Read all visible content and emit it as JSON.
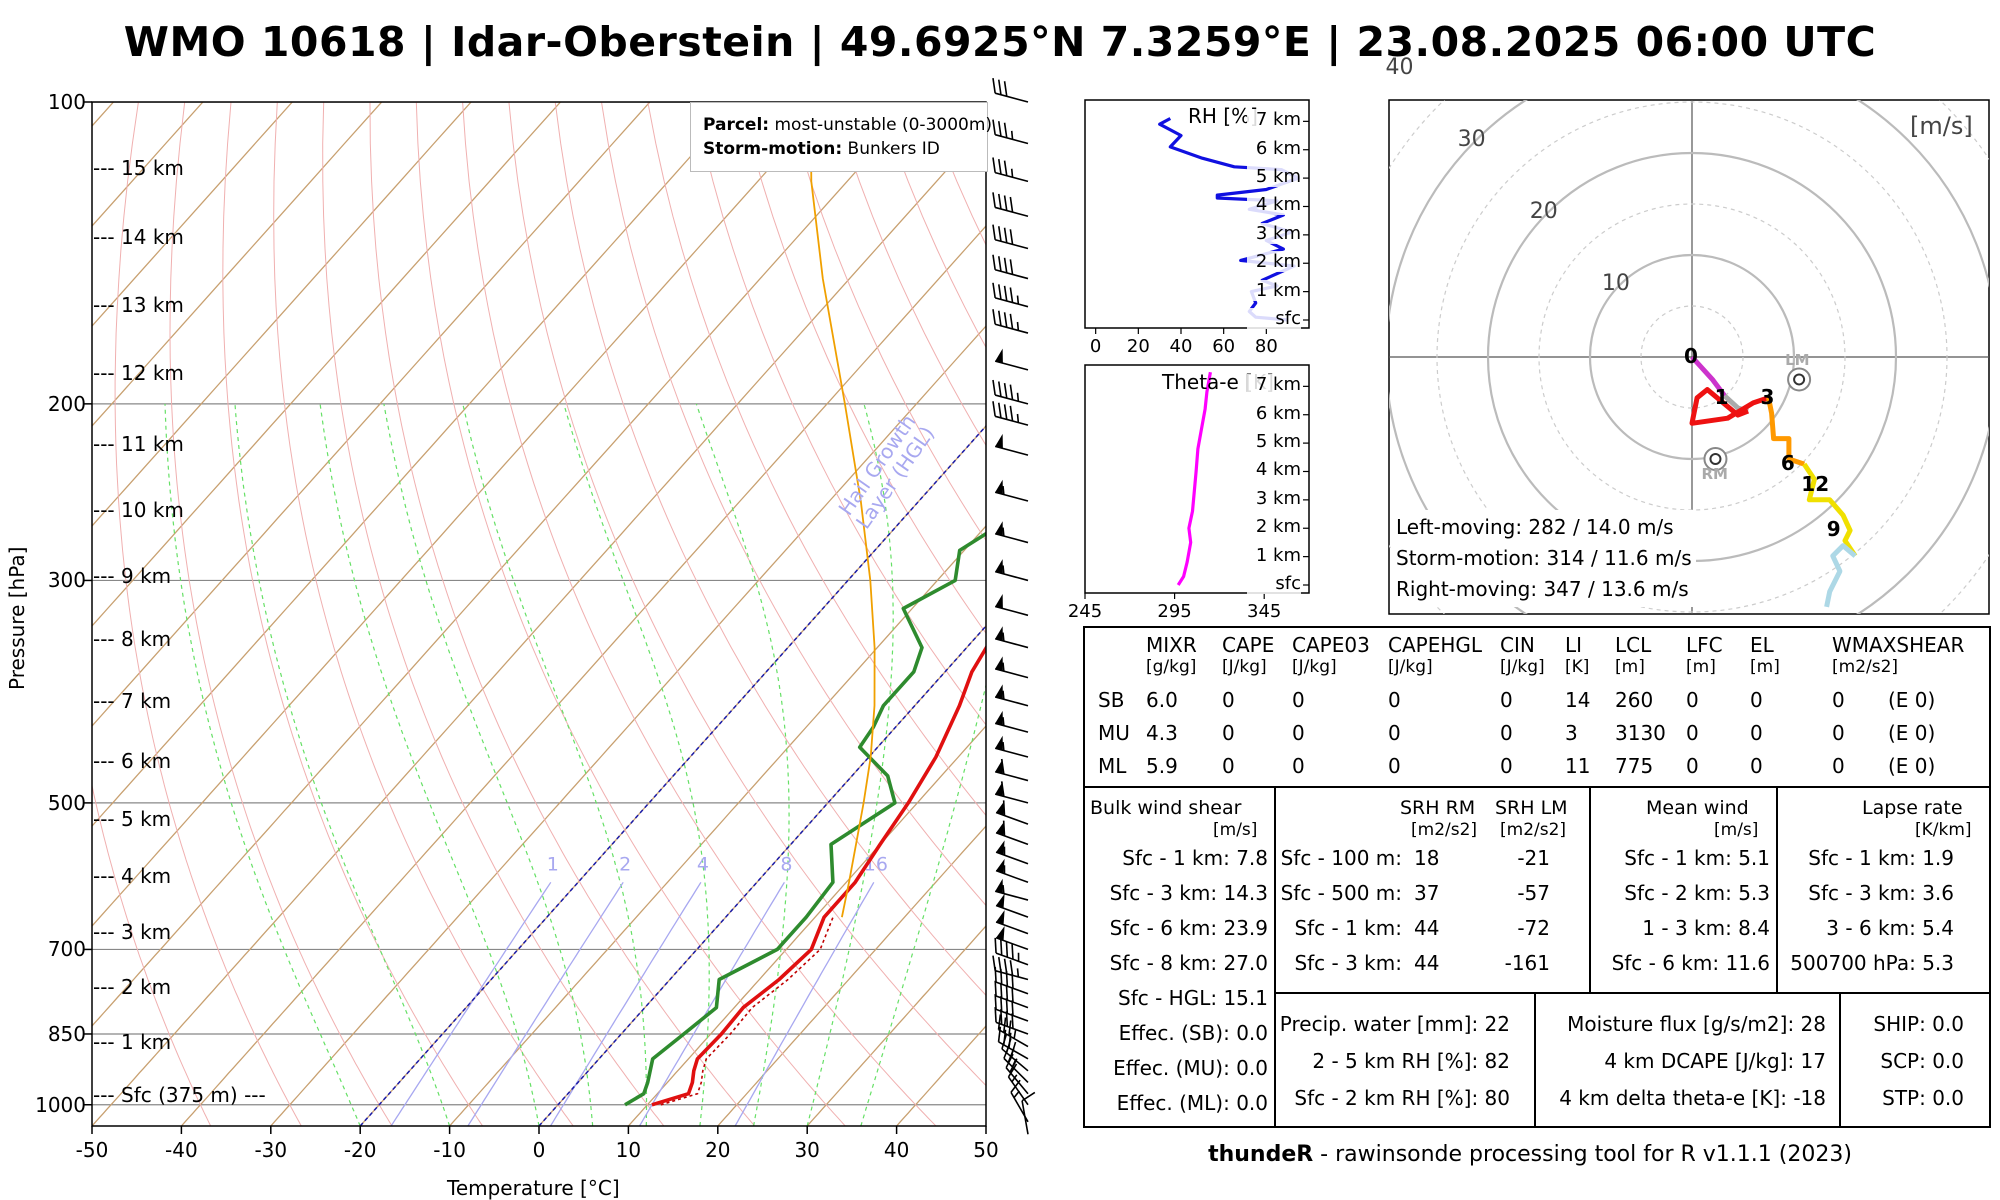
{
  "title": "WMO 10618 | Idar-Oberstein | 49.6925°N 7.3259°E | 23.08.2025 06:00 UTC",
  "skewt": {
    "ylabel": "Pressure [hPa]",
    "xlabel": "Temperature [°C]",
    "xticks": [
      "-50",
      "-40",
      "-30",
      "-20",
      "-10",
      "0",
      "10",
      "20",
      "30",
      "40",
      "50"
    ],
    "yticks": [
      "100",
      "200",
      "300",
      "500",
      "700",
      "850",
      "1000"
    ],
    "heights": [
      "--- 15 km",
      "--- 14 km",
      "--- 13 km",
      "--- 12 km",
      "--- 11 km",
      "--- 10 km",
      "--- 9 km",
      "--- 8 km",
      "--- 7 km",
      "--- 6 km",
      "--- 5 km",
      "--- 4 km",
      "--- 3 km",
      "--- 2 km",
      "--- 1 km",
      "--- Sfc (375 m) ---"
    ],
    "hail_label": "Hail Growth Layer (HGL)",
    "mixing_ratio_labels": [
      "1",
      "2",
      "4",
      "8",
      "16"
    ],
    "legend": {
      "parcel_label": "Parcel:",
      "parcel_value": "most-unstable (0-3000m)",
      "storm_label": "Storm-motion:",
      "storm_value": "Bunkers ID"
    }
  },
  "rh_panel": {
    "title": "RH [%]",
    "xticks": [
      "0",
      "20",
      "40",
      "60",
      "80"
    ],
    "levels": [
      "7 km",
      "6 km",
      "5 km",
      "4 km",
      "3 km",
      "2 km",
      "1 km",
      "sfc"
    ]
  },
  "thetae_panel": {
    "title": "Theta-e [K]",
    "xticks": [
      "245",
      "295",
      "345"
    ],
    "levels": [
      "7 km",
      "6 km",
      "5 km",
      "4 km",
      "3 km",
      "2 km",
      "1 km",
      "sfc"
    ]
  },
  "hodograph": {
    "unit": "[m/s]",
    "rings": [
      "10",
      "20",
      "30",
      "40"
    ],
    "height_labels": [
      "0",
      "1",
      "3",
      "6",
      "12",
      "9"
    ],
    "lm_label": "LM",
    "rm_label": "RM",
    "text": [
      "Left-moving: 282 / 14.0 m/s",
      "Storm-motion: 314 / 11.6 m/s",
      "Right-moving: 347 / 13.6 m/s"
    ]
  },
  "indices": {
    "headers": [
      "MIXR",
      "CAPE",
      "CAPE03",
      "CAPEHGL",
      "CIN",
      "LI",
      "LCL",
      "LFC",
      "EL",
      "WMAXSHEAR"
    ],
    "units": [
      "[g/kg]",
      "[J/kg]",
      "[J/kg]",
      "[J/kg]",
      "[J/kg]",
      "[K]",
      "[m]",
      "[m]",
      "[m]",
      "[m2/s2]"
    ],
    "rows": [
      {
        "name": "SB",
        "vals": [
          "6.0",
          "0",
          "0",
          "0",
          "0",
          "14",
          "260",
          "0",
          "0",
          "0",
          "(E 0)"
        ]
      },
      {
        "name": "MU",
        "vals": [
          "4.3",
          "0",
          "0",
          "0",
          "0",
          "3",
          "3130",
          "0",
          "0",
          "0",
          "(E 0)"
        ]
      },
      {
        "name": "ML",
        "vals": [
          "5.9",
          "0",
          "0",
          "0",
          "0",
          "11",
          "775",
          "0",
          "0",
          "0",
          "(E 0)"
        ]
      }
    ]
  },
  "shear": {
    "title": "Bulk wind shear",
    "unit": "[m/s]",
    "rows": [
      "Sfc - 1 km: 7.8",
      "Sfc - 3 km: 14.3",
      "Sfc - 6 km: 23.9",
      "Sfc - 8 km: 27.0",
      "Sfc - HGL: 15.1",
      "Effec. (SB): 0.0",
      "Effec. (MU): 0.0",
      "Effec. (ML): 0.0"
    ]
  },
  "srh": {
    "title_rm": "SRH RM",
    "title_lm": "SRH LM",
    "unit_rm": "[m2/s2]",
    "unit_lm": "[m2/s2]",
    "rows": [
      {
        "label": "Sfc - 100 m:",
        "rm": "18",
        "lm": "-21"
      },
      {
        "label": "Sfc - 500 m:",
        "rm": "37",
        "lm": "-57"
      },
      {
        "label": "Sfc - 1 km:",
        "rm": "44",
        "lm": "-72"
      },
      {
        "label": "Sfc - 3 km:",
        "rm": "44",
        "lm": "-161"
      }
    ]
  },
  "mean_wind": {
    "title": "Mean wind",
    "unit": "[m/s]",
    "rows": [
      "Sfc - 1 km: 5.1",
      "Sfc - 2 km: 5.3",
      "1 - 3 km: 8.4",
      "Sfc - 6 km: 11.6"
    ]
  },
  "lapse": {
    "title": "Lapse rate",
    "unit": "[K/km]",
    "rows": [
      "Sfc - 1 km: 1.9",
      "Sfc - 3 km: 3.6",
      "3 - 6 km: 5.4",
      "500700 hPa: 5.3"
    ]
  },
  "moisture": {
    "col1": [
      "Precip. water [mm]: 22",
      "2 - 5 km RH [%]: 82",
      "Sfc - 2 km RH [%]: 80"
    ],
    "col2": [
      "Moisture flux [g/s/m2]: 28",
      "4 km DCAPE [J/kg]: 17",
      "4 km delta theta-e [K]: -18"
    ],
    "col3": [
      "SHIP: 0.0",
      "SCP: 0.0",
      "STP: 0.0"
    ]
  },
  "footer": {
    "bold": "thundeR",
    "rest": " - rawinsonde processing tool for R v1.1.1 (2023)"
  },
  "chart_data": [
    {
      "type": "line",
      "name": "skew-t",
      "xlabel": "Temperature [°C]",
      "ylabel": "Pressure [hPa]",
      "xlim": [
        -50,
        50
      ],
      "ylim": [
        1050,
        100
      ],
      "yscale": "log",
      "series": [
        {
          "name": "",
          "color": "#e01010",
          "points": [
            [
              1000,
              10.5
            ],
            [
              975,
              13.5
            ],
            [
              950,
              12.8
            ],
            [
              925,
              11.8
            ],
            [
              900,
              11.0
            ],
            [
              850,
              11.2
            ],
            [
              800,
              11.0
            ],
            [
              750,
              12.2
            ],
            [
              700,
              12.8
            ],
            [
              650,
              11.0
            ],
            [
              600,
              11.0
            ],
            [
              550,
              10.0
            ],
            [
              500,
              9.0
            ],
            [
              450,
              7.5
            ],
            [
              400,
              5.0
            ],
            [
              370,
              3.0
            ],
            [
              350,
              2.2
            ],
            [
              320,
              0.5
            ],
            [
              300,
              -0.5
            ],
            [
              270,
              -2.0
            ],
            [
              250,
              -3.0
            ],
            [
              230,
              -4.5
            ],
            [
              220,
              -4.5
            ],
            [
              210,
              -4.0
            ],
            [
              200,
              -2.5
            ],
            [
              180,
              0.5
            ],
            [
              170,
              4.5
            ],
            [
              160,
              7.0
            ],
            [
              150,
              8.0
            ],
            [
              140,
              9.5
            ],
            [
              130,
              10.0
            ],
            [
              120,
              12.0
            ],
            [
              110,
              15.0
            ],
            [
              100,
              20.0
            ]
          ]
        },
        {
          "name": "",
          "color": "#2e8b2e",
          "points": [
            [
              1000,
              7.5
            ],
            [
              975,
              8.5
            ],
            [
              950,
              7.8
            ],
            [
              900,
              6.0
            ],
            [
              850,
              7.0
            ],
            [
              800,
              8.0
            ],
            [
              750,
              5.5
            ],
            [
              700,
              9.0
            ],
            [
              650,
              9.0
            ],
            [
              600,
              8.5
            ],
            [
              550,
              4.5
            ],
            [
              500,
              7.5
            ],
            [
              470,
              4.0
            ],
            [
              440,
              -2.0
            ],
            [
              420,
              -2.5
            ],
            [
              400,
              -3.5
            ],
            [
              370,
              -3.5
            ],
            [
              350,
              -5.0
            ],
            [
              320,
              -11.0
            ],
            [
              300,
              -8.0
            ],
            [
              280,
              -10.5
            ],
            [
              260,
              -8.0
            ],
            [
              240,
              -10.0
            ],
            [
              220,
              -9.0
            ],
            [
              210,
              -13.0
            ],
            [
              200,
              -15.5
            ],
            [
              190,
              -17.0
            ],
            [
              180,
              -18.0
            ],
            [
              165,
              -18.0
            ],
            [
              150,
              -17.0
            ],
            [
              140,
              -17.5
            ],
            [
              130,
              -16.5
            ],
            [
              120,
              -16.0
            ],
            [
              110,
              -14.0
            ],
            [
              100,
              -10.0
            ]
          ]
        },
        {
          "name": "",
          "color": "#f0a000",
          "points": [
            [
              650,
              13.0
            ],
            [
              600,
              10.3
            ],
            [
              550,
              7.3
            ],
            [
              500,
              4.0
            ],
            [
              450,
              0.2
            ],
            [
              400,
              -4.5
            ],
            [
              350,
              -10.3
            ],
            [
              300,
              -17.5
            ],
            [
              250,
              -26.5
            ],
            [
              200,
              -38.0
            ],
            [
              150,
              -53.0
            ],
            [
              120,
              -64.0
            ],
            [
              100,
              -72.0
            ]
          ]
        }
      ]
    },
    {
      "type": "line",
      "name": "RH profile",
      "xlim": [
        0,
        100
      ],
      "ylim": [
        0,
        8
      ],
      "series": [
        {
          "name": "",
          "color": "#1010e0",
          "points": [
            [
              90,
              0
            ],
            [
              75,
              0.1
            ],
            [
              72,
              0.3
            ],
            [
              75,
              0.6
            ],
            [
              73,
              1.0
            ],
            [
              85,
              1.2
            ],
            [
              78,
              1.4
            ],
            [
              93,
              1.9
            ],
            [
              68,
              2.1
            ],
            [
              88,
              2.5
            ],
            [
              80,
              2.8
            ],
            [
              92,
              3.1
            ],
            [
              78,
              3.4
            ],
            [
              88,
              3.7
            ],
            [
              72,
              3.9
            ],
            [
              85,
              4.2
            ],
            [
              57,
              4.3
            ],
            [
              57,
              4.4
            ],
            [
              80,
              4.6
            ],
            [
              95,
              5.0
            ],
            [
              87,
              5.3
            ],
            [
              65,
              5.4
            ],
            [
              50,
              5.7
            ],
            [
              35,
              6.1
            ],
            [
              40,
              6.5
            ],
            [
              30,
              6.9
            ],
            [
              35,
              7.1
            ]
          ]
        }
      ]
    },
    {
      "type": "line",
      "name": "Theta-e profile",
      "xlim": [
        245,
        370
      ],
      "ylim": [
        0,
        8
      ],
      "series": [
        {
          "name": "",
          "color": "#ff00ff",
          "points": [
            [
              297,
              0
            ],
            [
              300,
              0.3
            ],
            [
              302,
              0.8
            ],
            [
              304,
              1.5
            ],
            [
              303,
              2.0
            ],
            [
              305,
              2.6
            ],
            [
              306,
              3.3
            ],
            [
              307,
              4.0
            ],
            [
              308,
              4.8
            ],
            [
              310,
              5.5
            ],
            [
              312,
              6.2
            ],
            [
              313,
              6.8
            ],
            [
              315,
              7.5
            ]
          ]
        }
      ]
    },
    {
      "type": "line",
      "name": "hodograph",
      "unit": "m/s",
      "series": [
        {
          "name": "",
          "color": "#cc33cc",
          "points": [
            [
              0,
              0
            ],
            [
              2.0,
              -2.2
            ],
            [
              3.2,
              -3.8
            ]
          ]
        },
        {
          "name": "",
          "color": "#aaaaaa",
          "points": [
            [
              3.2,
              -3.8
            ],
            [
              4.5,
              -5.0
            ],
            [
              5.5,
              -5.3
            ]
          ]
        },
        {
          "name": "",
          "color": "#ee1111",
          "points": [
            [
              5.5,
              -5.3
            ],
            [
              4.5,
              -5.7
            ],
            [
              1.5,
              -3.2
            ],
            [
              0.5,
              -4.0
            ],
            [
              0,
              -6.5
            ],
            [
              3.5,
              -6.0
            ],
            [
              6.0,
              -4.5
            ],
            [
              7.5,
              -4.0
            ]
          ]
        },
        {
          "name": "",
          "color": "#ff9900",
          "points": [
            [
              7.5,
              -4.0
            ],
            [
              7.8,
              -5.5
            ],
            [
              8.0,
              -8.0
            ],
            [
              9.5,
              -8.0
            ],
            [
              9.5,
              -10.0
            ],
            [
              11.0,
              -10.5
            ]
          ]
        },
        {
          "name": "",
          "color": "#f0e000",
          "points": [
            [
              11.0,
              -10.5
            ],
            [
              12.0,
              -12.0
            ],
            [
              11.5,
              -14.0
            ],
            [
              13.5,
              -14.0
            ],
            [
              14.8,
              -15.5
            ],
            [
              15.5,
              -17.0
            ],
            [
              15.0,
              -18.0
            ],
            [
              16.0,
              -19.5
            ]
          ]
        },
        {
          "name": "",
          "color": "#add8e6",
          "points": [
            [
              16.0,
              -19.5
            ],
            [
              14.8,
              -18.5
            ],
            [
              13.8,
              -19.5
            ],
            [
              14.5,
              -21.0
            ],
            [
              13.5,
              -23.0
            ],
            [
              13.2,
              -24.5
            ]
          ]
        }
      ],
      "storm_motion": {
        "LM": [
          10.5,
          -2.2
        ],
        "RM": [
          2.3,
          -10.0
        ]
      }
    }
  ]
}
